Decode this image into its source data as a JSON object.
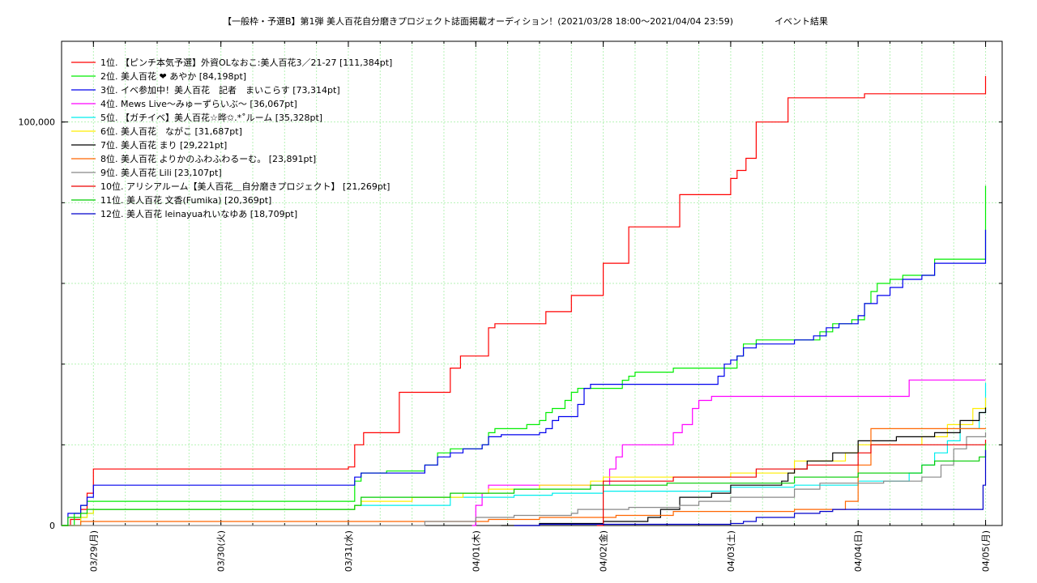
{
  "chart_data": {
    "type": "line",
    "title": "【一般枠・予選B】第1弾 美人百花自分磨きプロジェクト誌面掲載オーディション！(2021/03/28 18:00〜2021/04/04 23:59)",
    "subtitle": "イベント結果",
    "xlabel": "",
    "ylabel": "",
    "x_ticks": [
      "03/29(月)",
      "03/30(火)",
      "03/31(水)",
      "04/01(木)",
      "04/02(金)",
      "04/03(土)",
      "04/04(日)",
      "04/05(月)"
    ],
    "xlim": [
      -0.25,
      7.13
    ],
    "ylim": [
      0,
      120000
    ],
    "y_ticks": [
      {
        "value": 0,
        "label": "0"
      },
      {
        "value": 100000,
        "label": "100,000"
      }
    ],
    "grid": true,
    "legend_position": "top-left",
    "series": [
      {
        "name": " 1位. 【ピンチ本気予選】外資OLなおこ:美人百花3／21-27 [111,384pt]",
        "color": "#ff0000",
        "points": [
          [
            -0.25,
            0
          ],
          [
            -0.18,
            1500
          ],
          [
            -0.1,
            4000
          ],
          [
            -0.05,
            8000
          ],
          [
            0,
            14000
          ],
          [
            2,
            14500
          ],
          [
            2.05,
            20000
          ],
          [
            2.12,
            23000
          ],
          [
            2.35,
            23000
          ],
          [
            2.4,
            33000
          ],
          [
            2.75,
            33000
          ],
          [
            2.8,
            39000
          ],
          [
            2.88,
            42000
          ],
          [
            3.05,
            42000
          ],
          [
            3.1,
            49000
          ],
          [
            3.15,
            50000
          ],
          [
            3.5,
            50000
          ],
          [
            3.55,
            53000
          ],
          [
            3.7,
            53000
          ],
          [
            3.75,
            57000
          ],
          [
            3.95,
            57000
          ],
          [
            4,
            65000
          ],
          [
            4.15,
            65000
          ],
          [
            4.2,
            74000
          ],
          [
            4.55,
            74000
          ],
          [
            4.6,
            82000
          ],
          [
            4.95,
            82000
          ],
          [
            5,
            86000
          ],
          [
            5.05,
            88000
          ],
          [
            5.12,
            91000
          ],
          [
            5.2,
            100000
          ],
          [
            5.4,
            100000
          ],
          [
            5.45,
            106000
          ],
          [
            6.0,
            106000
          ],
          [
            6.05,
            107000
          ],
          [
            6.95,
            107000
          ],
          [
            7,
            111384
          ]
        ]
      },
      {
        "name": "2位. 美人百花 ❤ あやか [84,198pt]",
        "color": "#00ee00",
        "points": [
          [
            -0.25,
            0
          ],
          [
            -0.15,
            3000
          ],
          [
            -0.1,
            5000
          ],
          [
            -0.05,
            6000
          ],
          [
            2,
            6000
          ],
          [
            2.05,
            11000
          ],
          [
            2.1,
            13000
          ],
          [
            2.3,
            13500
          ],
          [
            2.6,
            15000
          ],
          [
            2.7,
            18000
          ],
          [
            2.8,
            19000
          ],
          [
            3.05,
            20000
          ],
          [
            3.1,
            23000
          ],
          [
            3.15,
            24000
          ],
          [
            3.4,
            25000
          ],
          [
            3.5,
            26000
          ],
          [
            3.55,
            28000
          ],
          [
            3.6,
            29000
          ],
          [
            3.7,
            31000
          ],
          [
            3.75,
            33000
          ],
          [
            3.8,
            34000
          ],
          [
            4.1,
            34000
          ],
          [
            4.15,
            36000
          ],
          [
            4.2,
            37000
          ],
          [
            4.25,
            38000
          ],
          [
            4.4,
            38000
          ],
          [
            4.55,
            39000
          ],
          [
            4.9,
            39000
          ],
          [
            5.05,
            42000
          ],
          [
            5.1,
            45000
          ],
          [
            5.2,
            46000
          ],
          [
            5.65,
            46000
          ],
          [
            5.7,
            48000
          ],
          [
            5.8,
            50000
          ],
          [
            5.95,
            51000
          ],
          [
            6.05,
            55000
          ],
          [
            6.1,
            58000
          ],
          [
            6.15,
            60000
          ],
          [
            6.25,
            61000
          ],
          [
            6.35,
            62000
          ],
          [
            6.55,
            62000
          ],
          [
            6.6,
            66000
          ],
          [
            6.95,
            66000
          ],
          [
            7,
            84198
          ]
        ]
      },
      {
        "name": " 3位. イベ参加中！美人百花　記者　まいこらす [73,314pt]",
        "color": "#0000ee",
        "points": [
          [
            -0.25,
            0
          ],
          [
            -0.2,
            3000
          ],
          [
            -0.1,
            5000
          ],
          [
            -0.05,
            7000
          ],
          [
            0,
            10000
          ],
          [
            2,
            10000
          ],
          [
            2.05,
            12000
          ],
          [
            2.1,
            13000
          ],
          [
            2.3,
            13000
          ],
          [
            2.5,
            13000
          ],
          [
            2.6,
            15000
          ],
          [
            2.7,
            17000
          ],
          [
            2.8,
            18000
          ],
          [
            2.9,
            19000
          ],
          [
            3.05,
            20000
          ],
          [
            3.1,
            22000
          ],
          [
            3.2,
            22500
          ],
          [
            3.5,
            23000
          ],
          [
            3.55,
            24000
          ],
          [
            3.6,
            26000
          ],
          [
            3.65,
            27000
          ],
          [
            3.75,
            27000
          ],
          [
            3.8,
            30000
          ],
          [
            3.85,
            34000
          ],
          [
            3.9,
            35000
          ],
          [
            4.2,
            35000
          ],
          [
            4.6,
            35000
          ],
          [
            4.85,
            35000
          ],
          [
            4.9,
            37000
          ],
          [
            4.95,
            40000
          ],
          [
            5.0,
            41000
          ],
          [
            5.05,
            42000
          ],
          [
            5.1,
            44000
          ],
          [
            5.2,
            45000
          ],
          [
            5.5,
            46000
          ],
          [
            5.65,
            47000
          ],
          [
            5.75,
            49000
          ],
          [
            5.85,
            50000
          ],
          [
            6.0,
            52000
          ],
          [
            6.05,
            55000
          ],
          [
            6.15,
            57000
          ],
          [
            6.25,
            59000
          ],
          [
            6.35,
            61000
          ],
          [
            6.5,
            62000
          ],
          [
            6.6,
            65000
          ],
          [
            6.95,
            65000
          ],
          [
            7,
            73314
          ]
        ]
      },
      {
        "name": "4位. Mews Live〜みゅーずらいぶ〜 [36,067pt]",
        "color": "#ff00ff",
        "points": [
          [
            2.97,
            0
          ],
          [
            3.0,
            5000
          ],
          [
            3.05,
            8000
          ],
          [
            3.1,
            10000
          ],
          [
            4.0,
            10000
          ],
          [
            4.05,
            14000
          ],
          [
            4.1,
            17000
          ],
          [
            4.15,
            20000
          ],
          [
            4.5,
            20000
          ],
          [
            4.55,
            23000
          ],
          [
            4.62,
            25000
          ],
          [
            4.7,
            29000
          ],
          [
            4.75,
            31000
          ],
          [
            4.85,
            32000
          ],
          [
            6.3,
            32000
          ],
          [
            6.4,
            36067
          ],
          [
            7,
            36067
          ]
        ]
      },
      {
        "name": "5位. 【ガチイベ】美人百花☆晔✩.*˚ルーム [35,328pt]",
        "color": "#00eeee",
        "points": [
          [
            -0.25,
            0
          ],
          [
            -0.1,
            2000
          ],
          [
            -0.05,
            3000
          ],
          [
            0,
            4000
          ],
          [
            2,
            4000
          ],
          [
            2.05,
            5000
          ],
          [
            2.8,
            7000
          ],
          [
            3.3,
            7500
          ],
          [
            3.6,
            8000
          ],
          [
            4.0,
            8500
          ],
          [
            5.0,
            9500
          ],
          [
            5.5,
            10000
          ],
          [
            6.0,
            11000
          ],
          [
            6.4,
            13000
          ],
          [
            6.5,
            15000
          ],
          [
            6.6,
            18000
          ],
          [
            6.7,
            21000
          ],
          [
            6.8,
            24000
          ],
          [
            6.95,
            28000
          ],
          [
            7,
            35328
          ]
        ]
      },
      {
        "name": "6位. 美人百花　ながこ [31,687pt]",
        "color": "#ffee00",
        "points": [
          [
            -0.25,
            0
          ],
          [
            -0.1,
            2000
          ],
          [
            -0.05,
            3000
          ],
          [
            0,
            4000
          ],
          [
            2,
            4000
          ],
          [
            2.05,
            5000
          ],
          [
            2.1,
            6000
          ],
          [
            2.5,
            7000
          ],
          [
            2.9,
            8000
          ],
          [
            3.1,
            9000
          ],
          [
            3.5,
            10000
          ],
          [
            3.9,
            11000
          ],
          [
            4.0,
            12000
          ],
          [
            5.0,
            13000
          ],
          [
            5.5,
            16000
          ],
          [
            5.9,
            18000
          ],
          [
            6.0,
            20000
          ],
          [
            6.5,
            22000
          ],
          [
            6.7,
            25000
          ],
          [
            6.9,
            29000
          ],
          [
            7,
            31687
          ]
        ]
      },
      {
        "name": "7位. 美人百花 まり [29,221pt]",
        "color": "#000000",
        "points": [
          [
            3.2,
            0
          ],
          [
            3.5,
            500
          ],
          [
            4,
            1000
          ],
          [
            4.35,
            2000
          ],
          [
            4.45,
            4000
          ],
          [
            4.6,
            7000
          ],
          [
            4.85,
            8000
          ],
          [
            5.0,
            10000
          ],
          [
            5.3,
            10000
          ],
          [
            5.4,
            11000
          ],
          [
            5.45,
            13000
          ],
          [
            5.5,
            14000
          ],
          [
            5.6,
            16000
          ],
          [
            5.8,
            18000
          ],
          [
            6.0,
            21000
          ],
          [
            6.3,
            22000
          ],
          [
            6.6,
            23000
          ],
          [
            6.8,
            26000
          ],
          [
            6.95,
            28000
          ],
          [
            7,
            29221
          ]
        ]
      },
      {
        "name": " 8位. 美人百花 よりかのふわふわるーむ。 [23,891pt]",
        "color": "#ff6600",
        "points": [
          [
            -0.25,
            0
          ],
          [
            -0.1,
            1000
          ],
          [
            3.0,
            1000
          ],
          [
            3.1,
            1500
          ],
          [
            3.5,
            2000
          ],
          [
            4.0,
            2000
          ],
          [
            4.1,
            2500
          ],
          [
            4.5,
            2500
          ],
          [
            4.55,
            3500
          ],
          [
            5.5,
            4000
          ],
          [
            5.9,
            6000
          ],
          [
            6.0,
            15000
          ],
          [
            6.1,
            24000
          ],
          [
            7,
            23891
          ]
        ]
      },
      {
        "name": " 9位. 美人百花 Lili [23,107pt]",
        "color": "#888888",
        "points": [
          [
            -0.25,
            0
          ],
          [
            2.5,
            0
          ],
          [
            2.6,
            1000
          ],
          [
            3.0,
            2000
          ],
          [
            3.3,
            2500
          ],
          [
            3.75,
            3000
          ],
          [
            3.8,
            4000
          ],
          [
            4.2,
            4500
          ],
          [
            4.6,
            5000
          ],
          [
            4.75,
            6000
          ],
          [
            5.0,
            7000
          ],
          [
            5.5,
            9000
          ],
          [
            5.7,
            10500
          ],
          [
            6.2,
            11000
          ],
          [
            6.5,
            12000
          ],
          [
            6.65,
            15000
          ],
          [
            6.75,
            19000
          ],
          [
            6.85,
            22000
          ],
          [
            7,
            23107
          ]
        ]
      },
      {
        "name": "10位. アリシアルーム【美人百花＿自分磨きプロジェクト】 [21,269pt]",
        "color": "#ee0000",
        "points": [
          [
            3.95,
            0
          ],
          [
            4.0,
            11000
          ],
          [
            4.5,
            11000
          ],
          [
            4.55,
            12000
          ],
          [
            5.2,
            14000
          ],
          [
            5.6,
            15000
          ],
          [
            6.0,
            18000
          ],
          [
            6.1,
            20000
          ],
          [
            6.9,
            20000
          ],
          [
            7,
            21269
          ]
        ]
      },
      {
        "name": "11位. 美人百花 文香(Fumika) [20,369pt]",
        "color": "#00cc00",
        "points": [
          [
            -0.25,
            0
          ],
          [
            -0.2,
            2000
          ],
          [
            -0.1,
            3000
          ],
          [
            -0.05,
            4000
          ],
          [
            2,
            4000
          ],
          [
            2.05,
            5000
          ],
          [
            2.1,
            7000
          ],
          [
            2.8,
            8000
          ],
          [
            3.3,
            9000
          ],
          [
            3.9,
            10000
          ],
          [
            4.5,
            10500
          ],
          [
            5.5,
            12000
          ],
          [
            6.0,
            13000
          ],
          [
            6.5,
            15000
          ],
          [
            6.6,
            16000
          ],
          [
            6.95,
            17000
          ],
          [
            7,
            20369
          ]
        ]
      },
      {
        "name": "12位. 美人百花 leinayuaれいなゆあ [18,709pt]",
        "color": "#0000cc",
        "points": [
          [
            3.3,
            0
          ],
          [
            3.5,
            300
          ],
          [
            5.0,
            500
          ],
          [
            5.1,
            1000
          ],
          [
            5.2,
            2000
          ],
          [
            5.5,
            3000
          ],
          [
            5.7,
            3500
          ],
          [
            5.8,
            4000
          ],
          [
            6.95,
            4000
          ],
          [
            6.98,
            10000
          ],
          [
            7,
            18709
          ]
        ]
      }
    ]
  }
}
